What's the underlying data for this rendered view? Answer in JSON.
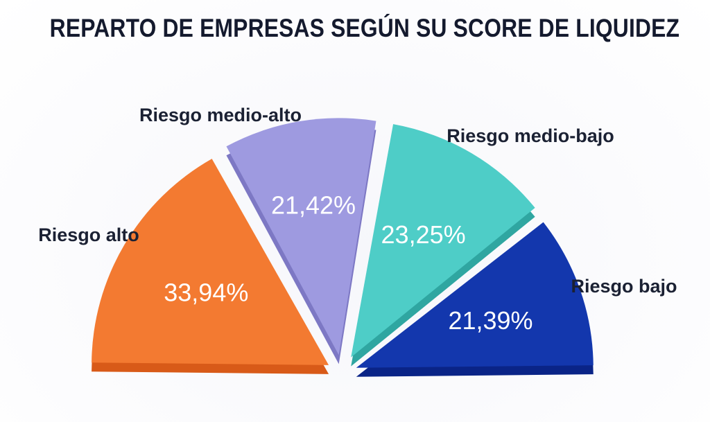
{
  "chart_data": {
    "type": "pie",
    "subtype": "semicircle",
    "title": "REPARTO DE EMPRESAS SEGÚN SU SCORE DE LIQUIDEZ",
    "categories": [
      "Riesgo alto",
      "Riesgo medio-alto",
      "Riesgo medio-bajo",
      "Riesgo bajo"
    ],
    "values": [
      33.94,
      21.42,
      23.25,
      21.39
    ],
    "value_labels": [
      "33,94%",
      "21,42%",
      "23,25%",
      "21,39%"
    ],
    "unit": "%",
    "colors": [
      "#f37a31",
      "#9e9ae0",
      "#4ecdc7",
      "#1337ad"
    ],
    "side_colors": [
      "#d85a18",
      "#7d78c4",
      "#2fa6a1",
      "#0a2487"
    ],
    "legend": "none"
  }
}
